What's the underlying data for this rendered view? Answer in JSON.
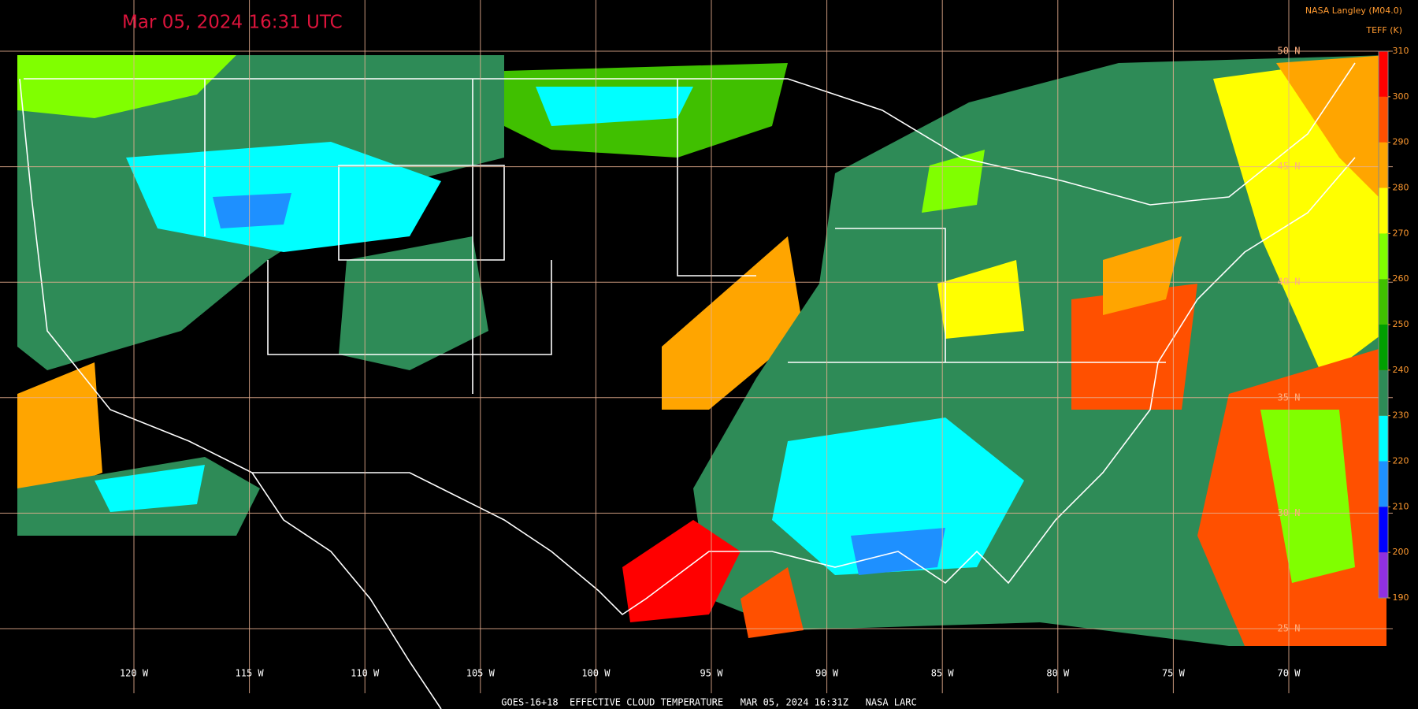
{
  "header": {
    "title": "Mar 05, 2024 16:31 UTC",
    "provider": "NASA Langley (M04.0)"
  },
  "colorbar": {
    "title": "TEFF (K)",
    "range": [
      190,
      310
    ],
    "ticks": [
      190,
      200,
      210,
      220,
      230,
      240,
      250,
      260,
      270,
      280,
      290,
      300,
      310
    ],
    "colors": [
      "#9030e0",
      "#0000ff",
      "#1e90ff",
      "#00ffff",
      "#2e8b57",
      "#00a000",
      "#40c000",
      "#80ff00",
      "#ffff00",
      "#ffa500",
      "#ff5000",
      "#ff0000"
    ]
  },
  "lon_labels": [
    "120 W",
    "115 W",
    "110 W",
    "105 W",
    "100 W",
    "95 W",
    "90 W",
    "85 W",
    "80 W",
    "75 W",
    "70 W"
  ],
  "lat_labels": [
    "50 N",
    "45 N",
    "40 N",
    "35 N",
    "30 N",
    "25 N"
  ],
  "footer": "GOES-16+18  EFFECTIVE CLOUD TEMPERATURE   MAR 05, 2024 16:31Z   NASA LARC"
}
